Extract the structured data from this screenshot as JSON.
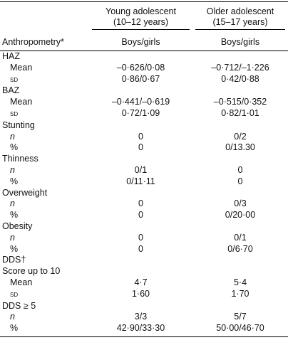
{
  "table": {
    "header": {
      "columns": [
        {
          "title": "Young adolescent",
          "subtitle": "(10–12 years)"
        },
        {
          "title": "Older adolescent",
          "subtitle": "(15–17 years)"
        }
      ],
      "row_label": "Anthropometry*",
      "subheaders": [
        "Boys/girls",
        "Boys/girls"
      ]
    },
    "rows": [
      [
        "HAZ"
      ],
      [
        "Mean",
        "–0·626/0·08",
        "–0·712/–1·226"
      ],
      [
        "sd",
        "0·86/0·67",
        "0·42/0·88"
      ],
      [
        "BAZ"
      ],
      [
        "Mean",
        "–0·441/–0·619",
        "–0·515/0·352"
      ],
      [
        "sd",
        "0·72/1·09",
        "0·82/1·01"
      ],
      [
        "Stunting"
      ],
      [
        "n",
        "0",
        "0/2"
      ],
      [
        "%",
        "0",
        "0/13.30"
      ],
      [
        "Thinness"
      ],
      [
        "n",
        "0/1",
        "0"
      ],
      [
        "%",
        "0/11·11",
        "0"
      ],
      [
        "Overweight"
      ],
      [
        "n",
        "0",
        "0/3"
      ],
      [
        "%",
        "0",
        "0/20·00"
      ],
      [
        "Obesity"
      ],
      [
        "n",
        "0",
        "0/1"
      ],
      [
        "%",
        "0",
        "0/6·70"
      ],
      [
        "DDS†"
      ],
      [
        "Score up to 10"
      ],
      [
        "Mean",
        "4·7",
        "5·4"
      ],
      [
        "sd",
        "1·60",
        "1·70"
      ],
      [
        "DDS ≥ 5"
      ],
      [
        "n",
        "3/3",
        "5/7"
      ],
      [
        "%",
        "42·90/33·30",
        "50·00/46·70"
      ]
    ]
  }
}
